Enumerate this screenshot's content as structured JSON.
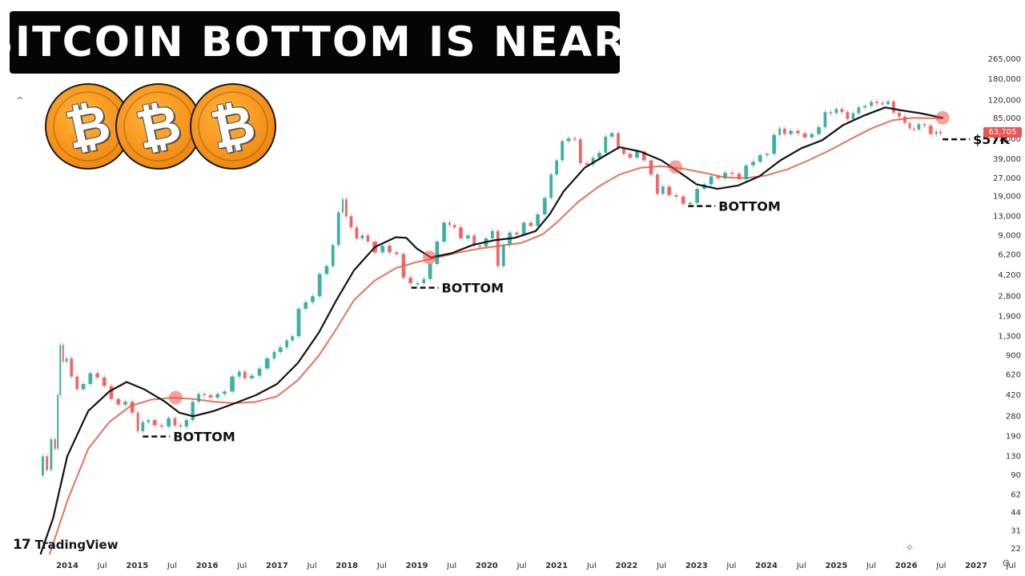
{
  "title": "BITCOIN BOTTOM IS NEAR!",
  "brand": {
    "name": "TradingView"
  },
  "colors": {
    "up": "#26a69a",
    "down": "#ef5350",
    "ma_black": "#131313",
    "ma_red": "#e5735c",
    "highlight": "#ef5350",
    "coin": "#f7931a"
  },
  "icons": [
    "bitcoin-icon",
    "tradingview-icon",
    "collapse-icon",
    "settings-icon",
    "magic-icon"
  ],
  "bitcoin_glyph": "₿",
  "current_price": "63,705",
  "chart_data": {
    "type": "line",
    "scale": "log",
    "x_ticks": [
      "2014",
      "Jul",
      "2015",
      "Jul",
      "2016",
      "Jul",
      "2017",
      "Jul",
      "2018",
      "Jul",
      "2019",
      "Jul",
      "2020",
      "Jul",
      "2021",
      "Jul",
      "2022",
      "Jul",
      "2023",
      "Jul",
      "2024",
      "Jul",
      "2025",
      "Jul",
      "2026",
      "Jul",
      "2027",
      "Jul"
    ],
    "y_ticks": [
      "265,000",
      "180,000",
      "120,000",
      "85,000",
      "57,000",
      "39,000",
      "27,000",
      "19,000",
      "13,000",
      "9,000",
      "6,200",
      "4,200",
      "2,800",
      "1,900",
      "1,300",
      "900",
      "620",
      "420",
      "280",
      "190",
      "130",
      "90",
      "62",
      "44",
      "31",
      "22"
    ],
    "xlim": [
      2013.6,
      2027.6
    ],
    "ylim": [
      20,
      290000
    ],
    "series": [
      {
        "role": "price",
        "points": [
          [
            2013.62,
            90
          ],
          [
            2013.68,
            130
          ],
          [
            2013.74,
            100
          ],
          [
            2013.8,
            180
          ],
          [
            2013.85,
            150
          ],
          [
            2013.88,
            420
          ],
          [
            2013.92,
            1100
          ],
          [
            2013.96,
            800
          ],
          [
            2014.02,
            850
          ],
          [
            2014.1,
            600
          ],
          [
            2014.18,
            470
          ],
          [
            2014.28,
            520
          ],
          [
            2014.38,
            640
          ],
          [
            2014.48,
            590
          ],
          [
            2014.58,
            500
          ],
          [
            2014.68,
            390
          ],
          [
            2014.78,
            350
          ],
          [
            2014.88,
            370
          ],
          [
            2014.98,
            300
          ],
          [
            2015.04,
            210
          ],
          [
            2015.12,
            250
          ],
          [
            2015.2,
            260
          ],
          [
            2015.3,
            235
          ],
          [
            2015.4,
            230
          ],
          [
            2015.5,
            270
          ],
          [
            2015.58,
            235
          ],
          [
            2015.66,
            230
          ],
          [
            2015.75,
            260
          ],
          [
            2015.84,
            370
          ],
          [
            2015.92,
            430
          ],
          [
            2016.0,
            420
          ],
          [
            2016.1,
            400
          ],
          [
            2016.2,
            430
          ],
          [
            2016.3,
            450
          ],
          [
            2016.42,
            600
          ],
          [
            2016.5,
            660
          ],
          [
            2016.58,
            580
          ],
          [
            2016.7,
            610
          ],
          [
            2016.8,
            700
          ],
          [
            2016.92,
            850
          ],
          [
            2017.0,
            960
          ],
          [
            2017.1,
            1050
          ],
          [
            2017.18,
            1200
          ],
          [
            2017.26,
            1300
          ],
          [
            2017.36,
            2200
          ],
          [
            2017.46,
            2500
          ],
          [
            2017.56,
            2800
          ],
          [
            2017.66,
            4300
          ],
          [
            2017.76,
            5000
          ],
          [
            2017.84,
            7500
          ],
          [
            2017.92,
            14000
          ],
          [
            2017.96,
            18000
          ],
          [
            2018.02,
            13000
          ],
          [
            2018.1,
            10500
          ],
          [
            2018.18,
            8500
          ],
          [
            2018.26,
            9000
          ],
          [
            2018.34,
            8000
          ],
          [
            2018.46,
            6500
          ],
          [
            2018.56,
            7400
          ],
          [
            2018.66,
            6500
          ],
          [
            2018.76,
            6300
          ],
          [
            2018.86,
            4000
          ],
          [
            2018.96,
            3600
          ],
          [
            2019.06,
            3600
          ],
          [
            2019.14,
            3900
          ],
          [
            2019.24,
            5200
          ],
          [
            2019.34,
            8000
          ],
          [
            2019.44,
            11500
          ],
          [
            2019.5,
            11000
          ],
          [
            2019.58,
            10500
          ],
          [
            2019.68,
            8500
          ],
          [
            2019.78,
            9000
          ],
          [
            2019.86,
            7400
          ],
          [
            2019.94,
            7300
          ],
          [
            2020.04,
            8500
          ],
          [
            2020.12,
            9800
          ],
          [
            2020.2,
            5000
          ],
          [
            2020.28,
            7500
          ],
          [
            2020.38,
            9500
          ],
          [
            2020.48,
            9200
          ],
          [
            2020.58,
            11500
          ],
          [
            2020.68,
            10800
          ],
          [
            2020.78,
            13500
          ],
          [
            2020.88,
            18500
          ],
          [
            2020.96,
            29000
          ],
          [
            2021.04,
            38000
          ],
          [
            2021.12,
            55000
          ],
          [
            2021.22,
            58000
          ],
          [
            2021.3,
            57000
          ],
          [
            2021.38,
            36000
          ],
          [
            2021.48,
            35000
          ],
          [
            2021.56,
            40000
          ],
          [
            2021.66,
            44000
          ],
          [
            2021.74,
            60000
          ],
          [
            2021.84,
            64000
          ],
          [
            2021.92,
            48000
          ],
          [
            2022.0,
            43000
          ],
          [
            2022.1,
            40000
          ],
          [
            2022.2,
            45000
          ],
          [
            2022.3,
            38000
          ],
          [
            2022.4,
            29000
          ],
          [
            2022.48,
            20000
          ],
          [
            2022.56,
            23000
          ],
          [
            2022.66,
            19500
          ],
          [
            2022.76,
            19000
          ],
          [
            2022.86,
            16500
          ],
          [
            2022.96,
            16800
          ],
          [
            2023.06,
            22000
          ],
          [
            2023.16,
            24000
          ],
          [
            2023.26,
            28000
          ],
          [
            2023.36,
            27000
          ],
          [
            2023.46,
            30000
          ],
          [
            2023.56,
            29500
          ],
          [
            2023.66,
            26500
          ],
          [
            2023.76,
            34500
          ],
          [
            2023.86,
            37000
          ],
          [
            2023.96,
            42000
          ],
          [
            2024.06,
            43000
          ],
          [
            2024.16,
            62000
          ],
          [
            2024.22,
            70000
          ],
          [
            2024.3,
            63000
          ],
          [
            2024.4,
            67000
          ],
          [
            2024.5,
            64000
          ],
          [
            2024.6,
            59000
          ],
          [
            2024.7,
            63000
          ],
          [
            2024.8,
            72000
          ],
          [
            2024.88,
            96000
          ],
          [
            2024.96,
            94000
          ],
          [
            2025.04,
            102000
          ],
          [
            2025.12,
            96000
          ],
          [
            2025.2,
            84000
          ],
          [
            2025.28,
            94000
          ],
          [
            2025.36,
            105000
          ],
          [
            2025.46,
            108000
          ],
          [
            2025.54,
            117000
          ],
          [
            2025.62,
            114000
          ],
          [
            2025.7,
            112000
          ],
          [
            2025.78,
            118000
          ],
          [
            2025.86,
            95000
          ],
          [
            2025.94,
            88000
          ],
          [
            2026.02,
            78000
          ],
          [
            2026.08,
            70000
          ],
          [
            2026.14,
            69000
          ],
          [
            2026.22,
            76000
          ],
          [
            2026.3,
            74000
          ],
          [
            2026.4,
            63000
          ],
          [
            2026.46,
            66000
          ],
          [
            2026.52,
            63705
          ]
        ]
      },
      {
        "role": "moving-average-black",
        "points": [
          [
            2013.62,
            20
          ],
          [
            2013.8,
            40
          ],
          [
            2014.0,
            130
          ],
          [
            2014.3,
            310
          ],
          [
            2014.6,
            450
          ],
          [
            2014.85,
            540
          ],
          [
            2015.1,
            470
          ],
          [
            2015.4,
            370
          ],
          [
            2015.6,
            300
          ],
          [
            2015.8,
            280
          ],
          [
            2016.1,
            310
          ],
          [
            2016.4,
            360
          ],
          [
            2016.7,
            420
          ],
          [
            2017.0,
            520
          ],
          [
            2017.3,
            780
          ],
          [
            2017.6,
            1400
          ],
          [
            2017.85,
            2600
          ],
          [
            2018.1,
            4600
          ],
          [
            2018.4,
            7200
          ],
          [
            2018.7,
            8700
          ],
          [
            2018.85,
            8600
          ],
          [
            2019.0,
            7000
          ],
          [
            2019.2,
            5900
          ],
          [
            2019.5,
            6400
          ],
          [
            2019.8,
            7500
          ],
          [
            2020.1,
            8200
          ],
          [
            2020.4,
            8600
          ],
          [
            2020.7,
            9800
          ],
          [
            2020.9,
            13500
          ],
          [
            2021.1,
            21000
          ],
          [
            2021.4,
            33000
          ],
          [
            2021.7,
            42000
          ],
          [
            2021.9,
            49000
          ],
          [
            2022.2,
            45000
          ],
          [
            2022.5,
            38000
          ],
          [
            2022.8,
            29000
          ],
          [
            2023.0,
            24000
          ],
          [
            2023.3,
            22000
          ],
          [
            2023.6,
            23500
          ],
          [
            2023.9,
            28000
          ],
          [
            2024.2,
            38000
          ],
          [
            2024.5,
            48000
          ],
          [
            2024.8,
            56000
          ],
          [
            2025.1,
            75000
          ],
          [
            2025.4,
            90000
          ],
          [
            2025.7,
            105000
          ],
          [
            2025.9,
            100000
          ],
          [
            2026.2,
            94000
          ],
          [
            2026.52,
            86000
          ]
        ]
      },
      {
        "role": "moving-average-red",
        "points": [
          [
            2013.75,
            20
          ],
          [
            2014.0,
            55
          ],
          [
            2014.3,
            150
          ],
          [
            2014.6,
            250
          ],
          [
            2014.9,
            340
          ],
          [
            2015.2,
            385
          ],
          [
            2015.5,
            400
          ],
          [
            2015.8,
            390
          ],
          [
            2016.1,
            370
          ],
          [
            2016.4,
            360
          ],
          [
            2016.7,
            370
          ],
          [
            2017.0,
            410
          ],
          [
            2017.3,
            560
          ],
          [
            2017.6,
            900
          ],
          [
            2017.85,
            1500
          ],
          [
            2018.1,
            2600
          ],
          [
            2018.4,
            3800
          ],
          [
            2018.7,
            4800
          ],
          [
            2019.0,
            5400
          ],
          [
            2019.3,
            5900
          ],
          [
            2019.6,
            6500
          ],
          [
            2019.9,
            7000
          ],
          [
            2020.2,
            7400
          ],
          [
            2020.5,
            7800
          ],
          [
            2020.8,
            9200
          ],
          [
            2021.0,
            11500
          ],
          [
            2021.3,
            17000
          ],
          [
            2021.6,
            23000
          ],
          [
            2021.9,
            29000
          ],
          [
            2022.2,
            33000
          ],
          [
            2022.5,
            34000
          ],
          [
            2022.8,
            32500
          ],
          [
            2023.1,
            30000
          ],
          [
            2023.4,
            27500
          ],
          [
            2023.7,
            27000
          ],
          [
            2024.0,
            28500
          ],
          [
            2024.3,
            32000
          ],
          [
            2024.6,
            38000
          ],
          [
            2024.9,
            46000
          ],
          [
            2025.2,
            57000
          ],
          [
            2025.5,
            70000
          ],
          [
            2025.8,
            82000
          ],
          [
            2026.1,
            86000
          ],
          [
            2026.52,
            85000
          ]
        ]
      }
    ],
    "highlights": [
      {
        "x": 2015.55,
        "y": 400
      },
      {
        "x": 2019.18,
        "y": 5900
      },
      {
        "x": 2022.7,
        "y": 33500
      },
      {
        "x": 2026.52,
        "y": 86000
      }
    ],
    "annotations": [
      {
        "label": "BOTTOM",
        "x": 2015.08,
        "y": 190
      },
      {
        "label": "BOTTOM",
        "x": 2018.92,
        "y": 3300
      },
      {
        "label": "BOTTOM",
        "x": 2022.88,
        "y": 15800
      },
      {
        "label": "$57K",
        "x": 2026.52,
        "y": 57000
      }
    ]
  }
}
